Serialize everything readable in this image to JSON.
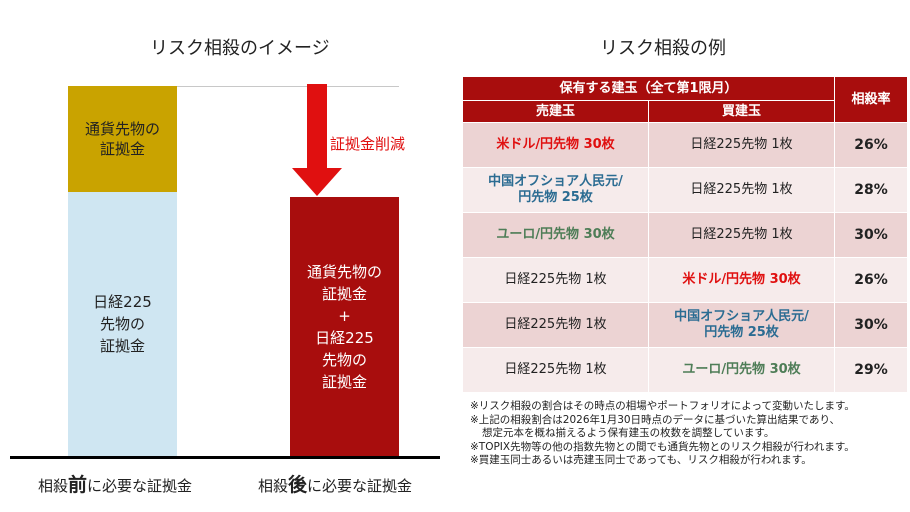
{
  "left": {
    "title": "リスク相殺のイメージ",
    "before_top_label": [
      "通貨先物の",
      "証拠金"
    ],
    "before_bottom_label": [
      "日経225",
      "先物の",
      "証拠金"
    ],
    "after_label": [
      "通貨先物の",
      "証拠金",
      "+",
      "日経225",
      "先物の",
      "証拠金"
    ],
    "reduction_label": "証拠金削減",
    "caption_before": {
      "pre": "相殺",
      "bold": "前",
      "post": "に必要な証拠金"
    },
    "caption_after": {
      "pre": "相殺",
      "bold": "後",
      "post": "に必要な証拠金"
    },
    "colors": {
      "currency": "#c9a300",
      "nikkei": "#cfe6f2",
      "combined": "#a80d0d",
      "arrow": "#e01010"
    }
  },
  "right": {
    "title": "リスク相殺の例",
    "header_group": "保有する建玉（全て第1限月）",
    "header_sell": "売建玉",
    "header_buy": "買建玉",
    "header_rate": "相殺率",
    "rows": [
      {
        "sell": [
          "米ドル/円先物 30枚"
        ],
        "sell_style": "red",
        "buy": [
          "日経225先物 1枚"
        ],
        "buy_style": "plain",
        "rate": "26%"
      },
      {
        "sell": [
          "中国オフショア人民元/",
          "円先物 25枚"
        ],
        "sell_style": "blue",
        "buy": [
          "日経225先物 1枚"
        ],
        "buy_style": "plain",
        "rate": "28%"
      },
      {
        "sell": [
          "ユーロ/円先物 30枚"
        ],
        "sell_style": "green",
        "buy": [
          "日経225先物 1枚"
        ],
        "buy_style": "plain",
        "rate": "30%"
      },
      {
        "sell": [
          "日経225先物 1枚"
        ],
        "sell_style": "plain",
        "buy": [
          "米ドル/円先物 30枚"
        ],
        "buy_style": "red",
        "rate": "26%"
      },
      {
        "sell": [
          "日経225先物 1枚"
        ],
        "sell_style": "plain",
        "buy": [
          "中国オフショア人民元/",
          "円先物 25枚"
        ],
        "buy_style": "blue",
        "rate": "30%"
      },
      {
        "sell": [
          "日経225先物 1枚"
        ],
        "sell_style": "plain",
        "buy": [
          "ユーロ/円先物 30枚"
        ],
        "buy_style": "green",
        "rate": "29%"
      }
    ],
    "notes": [
      "※リスク相殺の割合はその時点の相場やポートフォリオによって変動いたします。",
      "※上記の相殺割合は2026年1月30日時点のデータに基づいた算出結果であり、",
      "想定元本を概ね揃えるよう保有建玉の枚数を調整しています。",
      "※TOPIX先物等の他の指数先物との間でも通貨先物とのリスク相殺が行われます。",
      "※買建玉同士あるいは売建玉同士であっても、リスク相殺が行われます。"
    ],
    "colors": {
      "header": "#a80d0d",
      "row_odd": "#ecd3d3",
      "row_even": "#f6ebeb",
      "red": "#e01010",
      "blue": "#2b6c92",
      "green": "#4e7d57"
    }
  }
}
